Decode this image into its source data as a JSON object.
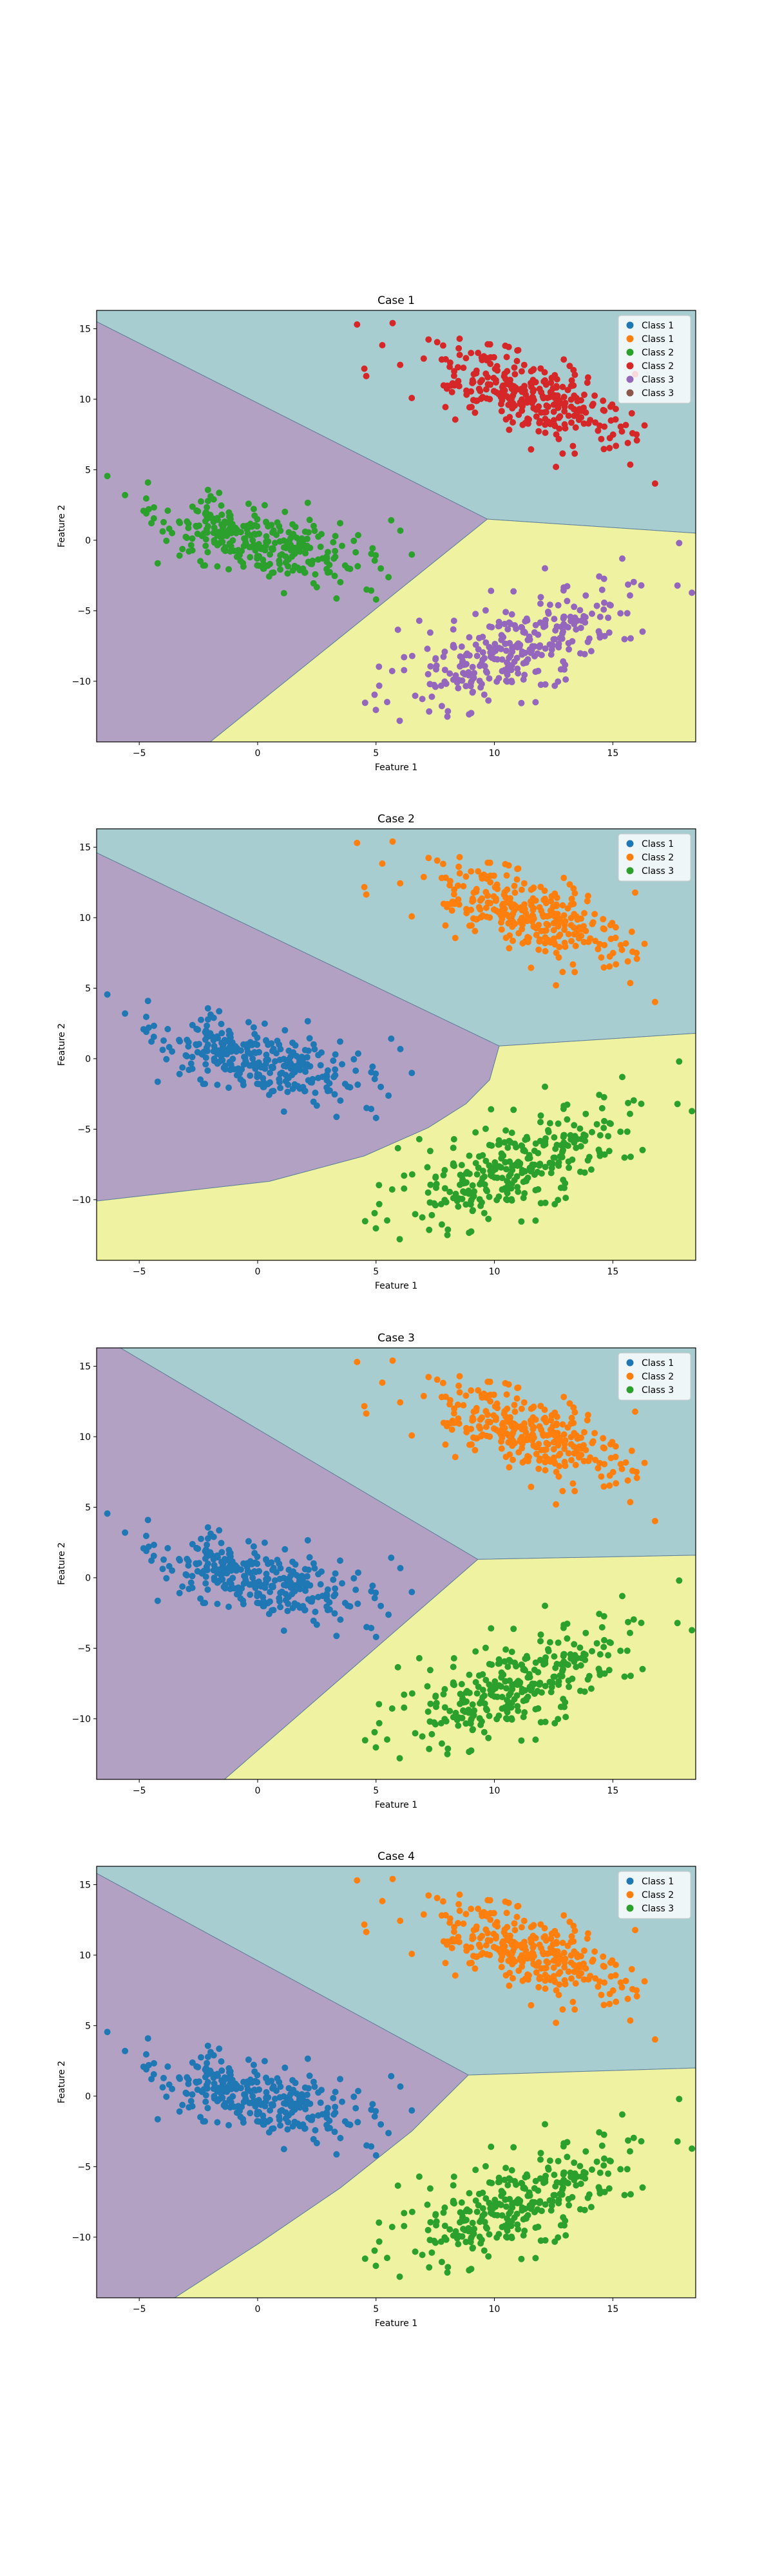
{
  "figure": {
    "background": "#ffffff"
  },
  "colors": {
    "region_1": "#b3a1c4",
    "region_2": "#a8cdd0",
    "region_3": "#eef2a1",
    "boundary": "#5f7f99",
    "tab_blue": "#1f77b4",
    "tab_orange": "#ff7f0e",
    "tab_green": "#2ca02c",
    "tab_red": "#d62728",
    "tab_purple": "#9467bd",
    "tab_brown": "#8c564b"
  },
  "clusters": {
    "A": {
      "center": [
        -0.1,
        -0.1
      ],
      "spread": [
        2.2,
        1.1
      ],
      "angle_deg": -25,
      "count": 300
    },
    "B": {
      "center": [
        11.2,
        10.3
      ],
      "spread": [
        2.4,
        1.2
      ],
      "angle_deg": -35,
      "count": 300
    },
    "C": {
      "center": [
        11.0,
        -7.5
      ],
      "spread": [
        2.8,
        1.3
      ],
      "angle_deg": 38,
      "count": 300
    },
    "outliers": {
      "A": [
        [
          -5.6,
          3.2
        ],
        [
          -4.6,
          2.2
        ],
        [
          4.6,
          -3.5
        ],
        [
          5.2,
          -2.0
        ],
        [
          5.0,
          -4.2
        ]
      ],
      "B": [
        [
          4.2,
          15.3
        ],
        [
          5.7,
          15.4
        ],
        [
          16.0,
          7.5
        ],
        [
          15.8,
          9.0
        ],
        [
          12.6,
          5.2
        ]
      ],
      "C": [
        [
          6.0,
          -12.8
        ],
        [
          17.8,
          -0.2
        ],
        [
          15.4,
          -1.3
        ],
        [
          16.2,
          -3.2
        ],
        [
          7.2,
          -9.5
        ]
      ]
    }
  },
  "chart_data": [
    {
      "type": "scatter",
      "title": "Case 1",
      "xlabel": "Feature 1",
      "ylabel": "Feature 2",
      "xlim": [
        -6.8,
        18.5
      ],
      "ylim": [
        -14.3,
        16.3
      ],
      "xticks": [
        -5,
        0,
        5,
        10,
        15
      ],
      "yticks": [
        -10,
        -5,
        0,
        5,
        10,
        15
      ],
      "xtick_labels": [
        "−5",
        "0",
        "5",
        "10",
        "15"
      ],
      "ytick_labels": [
        "−10",
        "−5",
        "0",
        "5",
        "10",
        "15"
      ],
      "grid": false,
      "legend_position": "top-right",
      "regions": [
        {
          "color_key": "region_2",
          "polygon": [
            [
              -6.8,
              16.3
            ],
            [
              18.5,
              16.3
            ],
            [
              18.5,
              0.5
            ],
            [
              9.7,
              1.5
            ],
            [
              -6.8,
              15.5
            ]
          ]
        },
        {
          "color_key": "region_1",
          "polygon": [
            [
              -6.8,
              15.5
            ],
            [
              9.7,
              1.5
            ],
            [
              -2.0,
              -14.3
            ],
            [
              -6.8,
              -14.3
            ]
          ]
        },
        {
          "color_key": "region_3",
          "polygon": [
            [
              9.7,
              1.5
            ],
            [
              18.5,
              0.5
            ],
            [
              18.5,
              -14.3
            ],
            [
              -2.0,
              -14.3
            ]
          ]
        }
      ],
      "legend": [
        {
          "label": "Class 1",
          "color_key": "tab_blue"
        },
        {
          "label": "Class 1",
          "color_key": "tab_orange"
        },
        {
          "label": "Class 2",
          "color_key": "tab_green"
        },
        {
          "label": "Class 2",
          "color_key": "tab_red"
        },
        {
          "label": "Class 3",
          "color_key": "tab_purple"
        },
        {
          "label": "Class 3",
          "color_key": "tab_brown"
        }
      ],
      "series": [
        {
          "cluster": "A",
          "color_key": "tab_green"
        },
        {
          "cluster": "B",
          "color_key": "tab_red"
        },
        {
          "cluster": "C",
          "color_key": "tab_purple"
        }
      ]
    },
    {
      "type": "scatter",
      "title": "Case 2",
      "xlabel": "Feature 1",
      "ylabel": "Feature 2",
      "xlim": [
        -6.8,
        18.5
      ],
      "ylim": [
        -14.3,
        16.3
      ],
      "xticks": [
        -5,
        0,
        5,
        10,
        15
      ],
      "yticks": [
        -10,
        -5,
        0,
        5,
        10,
        15
      ],
      "xtick_labels": [
        "−5",
        "0",
        "5",
        "10",
        "15"
      ],
      "ytick_labels": [
        "−10",
        "−5",
        "0",
        "5",
        "10",
        "15"
      ],
      "grid": false,
      "legend_position": "top-right",
      "regions": [
        {
          "color_key": "region_2",
          "polygon": [
            [
              -6.8,
              16.3
            ],
            [
              18.5,
              16.3
            ],
            [
              18.5,
              1.8
            ],
            [
              10.2,
              0.9
            ],
            [
              -6.8,
              14.6
            ]
          ]
        },
        {
          "color_key": "region_1",
          "polygon": [
            [
              -6.8,
              14.6
            ],
            [
              10.2,
              0.9
            ],
            [
              9.8,
              -1.5
            ],
            [
              8.8,
              -3.2
            ],
            [
              7.2,
              -4.9
            ],
            [
              4.5,
              -6.9
            ],
            [
              0.5,
              -8.7
            ],
            [
              -6.8,
              -10.1
            ]
          ]
        },
        {
          "color_key": "region_3",
          "polygon": [
            [
              10.2,
              0.9
            ],
            [
              18.5,
              1.8
            ],
            [
              18.5,
              -14.3
            ],
            [
              -6.8,
              -14.3
            ],
            [
              -6.8,
              -10.1
            ],
            [
              0.5,
              -8.7
            ],
            [
              4.5,
              -6.9
            ],
            [
              7.2,
              -4.9
            ],
            [
              8.8,
              -3.2
            ],
            [
              9.8,
              -1.5
            ]
          ]
        }
      ],
      "legend": [
        {
          "label": "Class 1",
          "color_key": "tab_blue"
        },
        {
          "label": "Class 2",
          "color_key": "tab_orange"
        },
        {
          "label": "Class 3",
          "color_key": "tab_green"
        }
      ],
      "series": [
        {
          "cluster": "A",
          "color_key": "tab_blue"
        },
        {
          "cluster": "B",
          "color_key": "tab_orange"
        },
        {
          "cluster": "C",
          "color_key": "tab_green"
        }
      ]
    },
    {
      "type": "scatter",
      "title": "Case 3",
      "xlabel": "Feature 1",
      "ylabel": "Feature 2",
      "xlim": [
        -6.8,
        18.5
      ],
      "ylim": [
        -14.3,
        16.3
      ],
      "xticks": [
        -5,
        0,
        5,
        10,
        15
      ],
      "yticks": [
        -10,
        -5,
        0,
        5,
        10,
        15
      ],
      "xtick_labels": [
        "−5",
        "0",
        "5",
        "10",
        "15"
      ],
      "ytick_labels": [
        "−10",
        "−5",
        "0",
        "5",
        "10",
        "15"
      ],
      "grid": false,
      "legend_position": "top-right",
      "regions": [
        {
          "color_key": "region_2",
          "polygon": [
            [
              -5.8,
              16.3
            ],
            [
              18.5,
              16.3
            ],
            [
              18.5,
              1.6
            ],
            [
              9.3,
              1.3
            ]
          ]
        },
        {
          "color_key": "region_1",
          "polygon": [
            [
              -6.8,
              16.3
            ],
            [
              -5.8,
              16.3
            ],
            [
              9.3,
              1.3
            ],
            [
              -1.4,
              -14.3
            ],
            [
              -6.8,
              -14.3
            ]
          ]
        },
        {
          "color_key": "region_3",
          "polygon": [
            [
              9.3,
              1.3
            ],
            [
              18.5,
              1.6
            ],
            [
              18.5,
              -14.3
            ],
            [
              -1.4,
              -14.3
            ]
          ]
        }
      ],
      "legend": [
        {
          "label": "Class 1",
          "color_key": "tab_blue"
        },
        {
          "label": "Class 2",
          "color_key": "tab_orange"
        },
        {
          "label": "Class 3",
          "color_key": "tab_green"
        }
      ],
      "series": [
        {
          "cluster": "A",
          "color_key": "tab_blue"
        },
        {
          "cluster": "B",
          "color_key": "tab_orange"
        },
        {
          "cluster": "C",
          "color_key": "tab_green"
        }
      ]
    },
    {
      "type": "scatter",
      "title": "Case 4",
      "xlabel": "Feature 1",
      "ylabel": "Feature 2",
      "xlim": [
        -6.8,
        18.5
      ],
      "ylim": [
        -14.3,
        16.3
      ],
      "xticks": [
        -5,
        0,
        5,
        10,
        15
      ],
      "yticks": [
        -10,
        -5,
        0,
        5,
        10,
        15
      ],
      "xtick_labels": [
        "−5",
        "0",
        "5",
        "10",
        "15"
      ],
      "ytick_labels": [
        "−10",
        "−5",
        "0",
        "5",
        "10",
        "15"
      ],
      "grid": false,
      "legend_position": "top-right",
      "regions": [
        {
          "color_key": "region_2",
          "polygon": [
            [
              -6.8,
              16.3
            ],
            [
              18.5,
              16.3
            ],
            [
              18.5,
              2.0
            ],
            [
              8.9,
              1.5
            ],
            [
              -6.8,
              15.8
            ]
          ]
        },
        {
          "color_key": "region_1",
          "polygon": [
            [
              -6.8,
              15.8
            ],
            [
              8.9,
              1.5
            ],
            [
              6.5,
              -2.5
            ],
            [
              3.5,
              -6.5
            ],
            [
              0.0,
              -10.5
            ],
            [
              -3.5,
              -14.3
            ],
            [
              -6.8,
              -14.3
            ]
          ]
        },
        {
          "color_key": "region_3",
          "polygon": [
            [
              8.9,
              1.5
            ],
            [
              18.5,
              2.0
            ],
            [
              18.5,
              -14.3
            ],
            [
              -3.5,
              -14.3
            ],
            [
              0.0,
              -10.5
            ],
            [
              3.5,
              -6.5
            ],
            [
              6.5,
              -2.5
            ]
          ]
        }
      ],
      "legend": [
        {
          "label": "Class 1",
          "color_key": "tab_blue"
        },
        {
          "label": "Class 2",
          "color_key": "tab_orange"
        },
        {
          "label": "Class 3",
          "color_key": "tab_green"
        }
      ],
      "series": [
        {
          "cluster": "A",
          "color_key": "tab_blue"
        },
        {
          "cluster": "B",
          "color_key": "tab_orange"
        },
        {
          "cluster": "C",
          "color_key": "tab_green"
        }
      ]
    }
  ]
}
